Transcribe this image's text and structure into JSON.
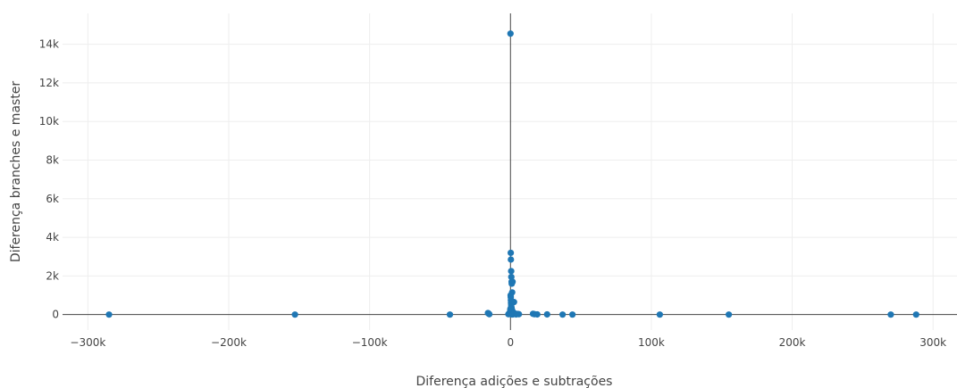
{
  "chart_data": {
    "type": "scatter",
    "title": "",
    "xlabel": "Diferença adições e subtrações",
    "ylabel": "Diferença branches e master",
    "xlim": [
      -318000,
      317000
    ],
    "ylim": [
      -800,
      15600
    ],
    "x_ticks": [
      -300000,
      -200000,
      -100000,
      0,
      100000,
      200000,
      300000
    ],
    "x_tick_labels": [
      "−300k",
      "−200k",
      "−100k",
      "0",
      "100k",
      "200k",
      "300k"
    ],
    "y_ticks": [
      0,
      2000,
      4000,
      6000,
      8000,
      10000,
      12000,
      14000
    ],
    "y_tick_labels": [
      "0",
      "2k",
      "4k",
      "6k",
      "8k",
      "10k",
      "12k",
      "14k"
    ],
    "grid": true,
    "legend": "none",
    "marker_color": "#1f77b4",
    "series": [
      {
        "x": [
          -285000,
          -153000,
          -43000,
          -16000,
          -15500,
          -15000,
          0,
          200,
          300,
          500,
          600,
          800,
          900,
          1200,
          1500,
          2500,
          100,
          200,
          300,
          400,
          500,
          600,
          700,
          800,
          1000,
          1200,
          1500,
          1800,
          2000,
          2500,
          3000,
          3500,
          -1500,
          -1000,
          -800,
          -500,
          -300,
          -200,
          -100,
          -50,
          0,
          50,
          100,
          150,
          250,
          400,
          800,
          1500,
          2000,
          4000,
          5000,
          6000,
          16000,
          17000,
          19000,
          26000,
          37000,
          44000,
          106000,
          155000,
          270000,
          288000
        ],
        "y": [
          0,
          0,
          0,
          80,
          50,
          20,
          14550,
          3200,
          2850,
          2250,
          1950,
          1700,
          1600,
          1150,
          1700,
          650,
          1000,
          900,
          750,
          600,
          500,
          400,
          350,
          300,
          250,
          200,
          150,
          120,
          100,
          80,
          60,
          40,
          20,
          50,
          30,
          80,
          100,
          150,
          200,
          250,
          300,
          150,
          100,
          50,
          30,
          20,
          10,
          5,
          20,
          10,
          30,
          20,
          40,
          20,
          10,
          10,
          0,
          0,
          0,
          0,
          0,
          0
        ]
      }
    ]
  }
}
